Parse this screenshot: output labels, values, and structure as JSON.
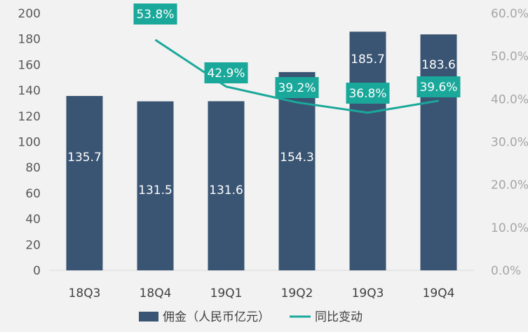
{
  "chart_data": {
    "type": "bar",
    "categories": [
      "18Q3",
      "18Q4",
      "19Q1",
      "19Q2",
      "19Q3",
      "19Q4"
    ],
    "series": [
      {
        "name": "佣金（人民币亿元）",
        "type": "bar",
        "axis": "left",
        "values": [
          135.7,
          131.5,
          131.6,
          154.3,
          185.7,
          183.6
        ],
        "labels": [
          "135.7",
          "131.5",
          "131.6",
          "154.3",
          "185.7",
          "183.6"
        ]
      },
      {
        "name": "同比变动",
        "type": "line",
        "axis": "right",
        "values": [
          null,
          0.538,
          0.429,
          0.392,
          0.368,
          0.396
        ],
        "labels": [
          "",
          "53.8%",
          "42.9%",
          "39.2%",
          "36.8%",
          "39.6%"
        ]
      }
    ],
    "y_left": {
      "min": 0,
      "max": 200,
      "ticks": [
        "0",
        "20",
        "40",
        "60",
        "80",
        "100",
        "120",
        "140",
        "160",
        "180",
        "200"
      ]
    },
    "y_right": {
      "min": 0,
      "max": 0.6,
      "ticks": [
        "0.0%",
        "10.0%",
        "20.0%",
        "30.0%",
        "40.0%",
        "50.0%",
        "60.0%"
      ]
    },
    "legend": {
      "position": "bottom"
    },
    "grid": false,
    "colors": {
      "bar": "#3a5573",
      "line": "#1aa89a",
      "label_box": "#1aa89a"
    }
  }
}
